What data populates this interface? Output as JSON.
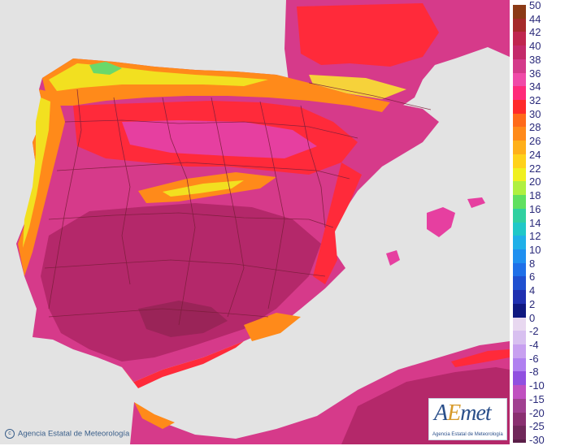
{
  "legend": {
    "ticks": [
      "50",
      "44",
      "42",
      "40",
      "38",
      "36",
      "34",
      "32",
      "30",
      "28",
      "26",
      "24",
      "22",
      "20",
      "18",
      "16",
      "14",
      "12",
      "10",
      "8",
      "6",
      "4",
      "2",
      "0",
      "-2",
      "-4",
      "-6",
      "-8",
      "-10",
      "-15",
      "-20",
      "-25",
      "-30"
    ],
    "colors": [
      "#8b3a16",
      "#a52a2a",
      "#c0264f",
      "#c42a6a",
      "#d43a8a",
      "#f04aa8",
      "#ff2a7a",
      "#ff2a2a",
      "#ff6a1a",
      "#ff8a1a",
      "#ffb01a",
      "#ffd21a",
      "#f0f020",
      "#b0f040",
      "#60e060",
      "#30d0a0",
      "#20c8c8",
      "#20b0e8",
      "#2090f0",
      "#2070e8",
      "#2050d0",
      "#2030b0",
      "#101880",
      "#e8d8f0",
      "#d8c0f0",
      "#c8a0f0",
      "#b080f0",
      "#9050e0",
      "#c050c0",
      "#a04090",
      "#8a3070",
      "#70285a",
      "#5a1e48"
    ]
  },
  "credit": {
    "symbol": "c",
    "text": "Agencia Estatal de Meteorología"
  },
  "logo": {
    "brand_a": "A",
    "brand_e": "E",
    "brand_rest": "met",
    "subtitle": "Agencia Estatal de Meteorología"
  },
  "colors": {
    "sea": "#e3e3e3",
    "very_hot": "#c42a6a",
    "hot": "#e63fa0",
    "warm": "#ff2a3a",
    "orange": "#ff8a1a",
    "yellow": "#f2e020",
    "green": "#6ad86a",
    "border": "#7a1e3a"
  }
}
